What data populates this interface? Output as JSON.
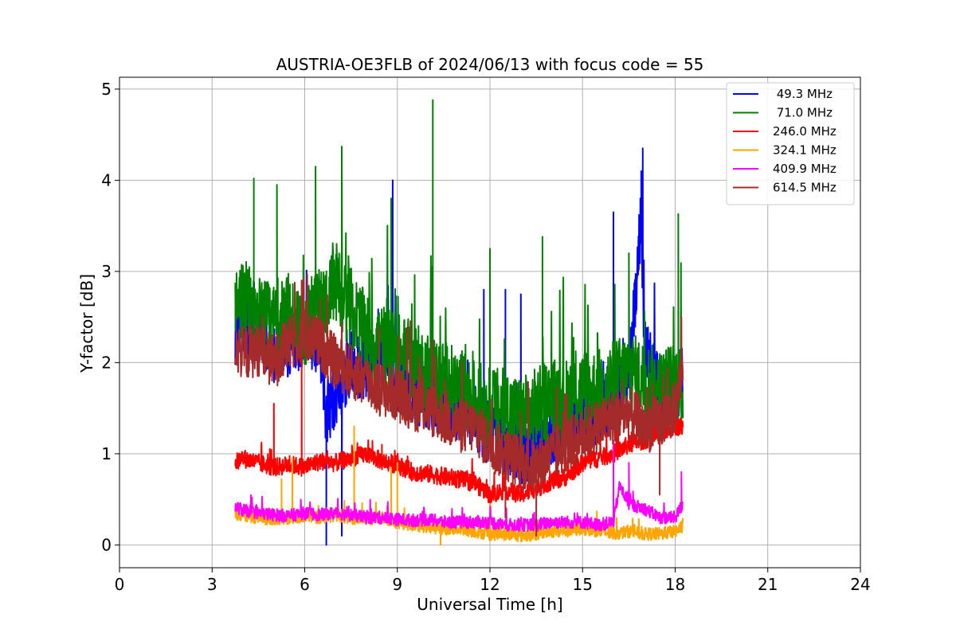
{
  "chart_data": {
    "type": "line",
    "title": "AUSTRIA-OE3FLB of 2024/06/13 with focus code = 55",
    "xlabel": "Universal Time [h]",
    "ylabel": "Y-factor [dB]",
    "xlim": [
      0,
      24
    ],
    "ylim": [
      -0.25,
      5.13
    ],
    "xticks": [
      0,
      3,
      6,
      9,
      12,
      15,
      18,
      21,
      24
    ],
    "xtick_labels": [
      "0",
      "3",
      "6",
      "9",
      "12",
      "15",
      "18",
      "21",
      "24"
    ],
    "yticks": [
      0,
      1,
      2,
      3,
      4,
      5
    ],
    "ytick_labels": [
      "0",
      "1",
      "2",
      "3",
      "4",
      "5"
    ],
    "grid": true,
    "legend_position": "top-right",
    "series": [
      {
        "name": " 49.3 MHz",
        "color": "#0000ff",
        "x": [
          3.75,
          4.0,
          4.5,
          5.0,
          5.5,
          6.0,
          6.5,
          6.7,
          7.0,
          7.5,
          8.0,
          8.5,
          8.8,
          9.0,
          9.5,
          10.0,
          10.5,
          11.0,
          11.5,
          12.0,
          12.5,
          13.0,
          13.5,
          14.0,
          14.5,
          15.0,
          15.5,
          16.0,
          16.5,
          16.9,
          17.0,
          17.5,
          18.0,
          18.25
        ],
        "y": [
          2.3,
          2.4,
          2.3,
          2.1,
          2.2,
          2.3,
          2.2,
          1.4,
          1.6,
          2.0,
          1.9,
          2.1,
          1.9,
          1.8,
          1.7,
          1.6,
          1.5,
          1.5,
          1.4,
          1.2,
          1.1,
          1.0,
          1.1,
          1.2,
          1.3,
          1.4,
          1.4,
          1.6,
          1.8,
          3.6,
          2.2,
          1.7,
          1.6,
          1.9
        ],
        "peaks": [
          [
            6.7,
            0.0
          ],
          [
            7.2,
            0.1
          ],
          [
            8.85,
            4.0
          ],
          [
            11.8,
            2.8
          ],
          [
            12.5,
            2.8
          ],
          [
            13.0,
            2.75
          ],
          [
            16.95,
            4.35
          ],
          [
            16.9,
            4.1
          ],
          [
            16.0,
            3.65
          ]
        ]
      },
      {
        "name": " 71.0 MHz",
        "color": "#008000",
        "x": [
          3.75,
          4.0,
          4.5,
          5.0,
          5.5,
          6.0,
          6.5,
          7.0,
          7.5,
          8.0,
          8.5,
          9.0,
          9.5,
          10.0,
          10.5,
          11.0,
          11.5,
          12.0,
          12.5,
          13.0,
          13.5,
          14.0,
          14.5,
          15.0,
          15.5,
          16.0,
          16.5,
          17.0,
          17.5,
          18.0,
          18.25
        ],
        "y": [
          2.6,
          2.7,
          2.5,
          2.4,
          2.5,
          2.4,
          2.6,
          2.8,
          2.6,
          2.3,
          2.2,
          2.1,
          2.0,
          1.9,
          1.8,
          1.7,
          1.6,
          1.5,
          1.5,
          1.4,
          1.5,
          1.6,
          1.6,
          1.7,
          1.7,
          1.8,
          1.9,
          1.8,
          1.7,
          1.8,
          1.7
        ],
        "peaks": [
          [
            4.35,
            4.02
          ],
          [
            5.1,
            3.95
          ],
          [
            6.35,
            4.15
          ],
          [
            7.2,
            4.37
          ],
          [
            8.8,
            3.8
          ],
          [
            10.15,
            4.88
          ],
          [
            12.0,
            3.25
          ],
          [
            13.7,
            3.38
          ],
          [
            16.5,
            3.2
          ],
          [
            18.1,
            3.63
          ]
        ]
      },
      {
        "name": "246.0 MHz",
        "color": "#ff0000",
        "x": [
          3.75,
          4.0,
          4.5,
          5.0,
          5.5,
          6.0,
          6.5,
          7.0,
          7.5,
          8.0,
          8.5,
          9.0,
          9.5,
          10.0,
          10.5,
          11.0,
          11.5,
          12.0,
          12.5,
          13.0,
          13.5,
          14.0,
          14.5,
          15.0,
          15.5,
          16.0,
          16.5,
          17.0,
          17.5,
          18.0,
          18.25
        ],
        "y": [
          0.9,
          0.95,
          0.9,
          0.85,
          0.88,
          0.85,
          0.92,
          0.9,
          0.95,
          1.0,
          0.92,
          0.88,
          0.8,
          0.78,
          0.75,
          0.72,
          0.68,
          0.55,
          0.6,
          0.55,
          0.62,
          0.7,
          0.75,
          0.9,
          0.95,
          1.0,
          1.1,
          1.15,
          1.2,
          1.3,
          1.3
        ],
        "peaks": [
          [
            5.0,
            1.55
          ],
          [
            5.9,
            2.3
          ],
          [
            8.5,
            1.1
          ],
          [
            16.5,
            1.2
          ]
        ]
      },
      {
        "name": "324.1 MHz",
        "color": "#ffa500",
        "x": [
          3.75,
          4.0,
          4.5,
          5.0,
          5.5,
          6.0,
          6.5,
          7.0,
          7.5,
          8.0,
          8.5,
          9.0,
          9.5,
          10.0,
          10.5,
          11.0,
          11.5,
          12.0,
          12.5,
          13.0,
          13.5,
          14.0,
          14.5,
          15.0,
          15.5,
          16.0,
          16.5,
          17.0,
          17.5,
          18.0,
          18.25
        ],
        "y": [
          0.35,
          0.32,
          0.3,
          0.28,
          0.3,
          0.32,
          0.3,
          0.33,
          0.3,
          0.28,
          0.3,
          0.25,
          0.22,
          0.2,
          0.18,
          0.18,
          0.15,
          0.12,
          0.12,
          0.1,
          0.12,
          0.15,
          0.15,
          0.18,
          0.15,
          0.12,
          0.15,
          0.12,
          0.12,
          0.15,
          0.2
        ],
        "peaks": [
          [
            5.25,
            0.72
          ],
          [
            5.6,
            0.95
          ],
          [
            7.6,
            1.3
          ],
          [
            8.8,
            0.85
          ],
          [
            9.0,
            0.9
          ],
          [
            10.4,
            0.0
          ],
          [
            12.0,
            0.45
          ]
        ]
      },
      {
        "name": "409.9 MHz",
        "color": "#ff00ff",
        "x": [
          3.75,
          4.0,
          4.5,
          5.0,
          5.5,
          6.0,
          6.5,
          7.0,
          7.5,
          8.0,
          8.5,
          9.0,
          9.5,
          10.0,
          10.5,
          11.0,
          11.5,
          12.0,
          12.5,
          13.0,
          13.5,
          14.0,
          14.5,
          15.0,
          15.5,
          16.0,
          16.2,
          16.5,
          17.0,
          17.5,
          18.0,
          18.25
        ],
        "y": [
          0.42,
          0.38,
          0.35,
          0.33,
          0.32,
          0.35,
          0.33,
          0.35,
          0.33,
          0.3,
          0.3,
          0.28,
          0.27,
          0.28,
          0.25,
          0.25,
          0.25,
          0.25,
          0.22,
          0.22,
          0.22,
          0.25,
          0.25,
          0.25,
          0.22,
          0.25,
          0.65,
          0.45,
          0.4,
          0.3,
          0.3,
          0.45
        ],
        "peaks": [
          [
            16.0,
            1.15
          ],
          [
            16.5,
            0.9
          ],
          [
            18.2,
            0.8
          ]
        ]
      },
      {
        "name": "614.5 MHz",
        "color": "#a52a2a",
        "x": [
          3.75,
          4.0,
          4.5,
          5.0,
          5.5,
          6.0,
          6.5,
          7.0,
          7.5,
          8.0,
          8.5,
          9.0,
          9.5,
          10.0,
          10.5,
          11.0,
          11.5,
          12.0,
          12.5,
          13.0,
          13.5,
          14.0,
          14.5,
          15.0,
          15.5,
          16.0,
          16.5,
          17.0,
          17.5,
          18.0,
          18.25
        ],
        "y": [
          2.2,
          2.1,
          2.15,
          2.0,
          2.2,
          2.3,
          2.2,
          2.0,
          1.9,
          1.8,
          1.7,
          1.65,
          1.55,
          1.5,
          1.4,
          1.3,
          1.3,
          1.1,
          1.0,
          0.9,
          0.85,
          1.0,
          1.1,
          1.2,
          1.3,
          1.4,
          1.45,
          1.3,
          1.35,
          1.5,
          2.0
        ],
        "peaks": [
          [
            5.9,
            2.9
          ],
          [
            6.5,
            2.7
          ],
          [
            12.5,
            0.3
          ],
          [
            13.5,
            0.1
          ],
          [
            17.5,
            0.55
          ],
          [
            18.2,
            2.5
          ]
        ]
      }
    ]
  }
}
